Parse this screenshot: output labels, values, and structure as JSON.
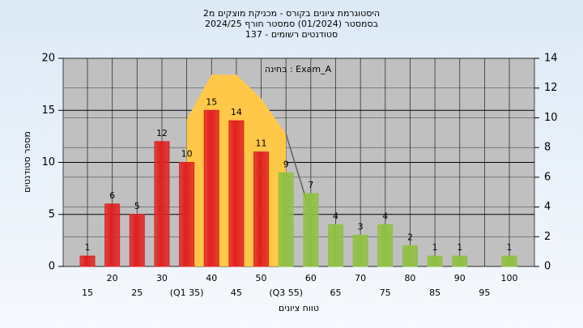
{
  "chart_data": {
    "type": "bar",
    "title": [
      "היסטוגרמת ציונים בקורס - מכניקת מוצקים מ2",
      "בסמסטר  (01/2024)  סמסטר חורף 2024/25",
      "סטודנטים רשומים - 137"
    ],
    "annotation": "בחינה : Exam_A",
    "x_label": "טווח ציונים",
    "y_label": "מספר סטודנטים",
    "categories": [
      "15",
      "20",
      "25",
      "30",
      "(Q1 35)",
      "40",
      "45",
      "50",
      "(Q3 55)",
      "60",
      "65",
      "70",
      "75",
      "80",
      "85",
      "90",
      "95",
      "100"
    ],
    "values": [
      1,
      6,
      5,
      12,
      10,
      15,
      14,
      11,
      9,
      7,
      4,
      3,
      4,
      2,
      1,
      1,
      null,
      1
    ],
    "colors": [
      "#e02020",
      "#e02020",
      "#e02020",
      "#e02020",
      "#e02020",
      "#e02020",
      "#e02020",
      "#e02020",
      "#8fc040",
      "#8fc040",
      "#8fc040",
      "#8fc040",
      "#8fc040",
      "#8fc040",
      "#8fc040",
      "#8fc040",
      "#8fc040",
      "#8fc040"
    ],
    "ylim": [
      0,
      20
    ],
    "yticks": [
      0,
      5,
      10,
      15,
      20
    ],
    "y2lim": [
      0,
      14
    ],
    "y2ticks": [
      0,
      2,
      4,
      6,
      8,
      10,
      12,
      14
    ],
    "overlays": [
      {
        "type": "area",
        "axis": "y2",
        "color": "#ffc848",
        "values": [
          null,
          null,
          null,
          null,
          9.9,
          12.9,
          12.9,
          11.3,
          8.9,
          null,
          null,
          null,
          null,
          null,
          null,
          null,
          null,
          null
        ]
      },
      {
        "type": "line",
        "axis": "y2",
        "color": "#606060",
        "values": [
          null,
          null,
          null,
          null,
          null,
          null,
          null,
          null,
          8.9,
          3.5,
          null,
          null,
          null,
          null,
          null,
          null,
          null,
          null
        ]
      }
    ],
    "grid": true
  }
}
